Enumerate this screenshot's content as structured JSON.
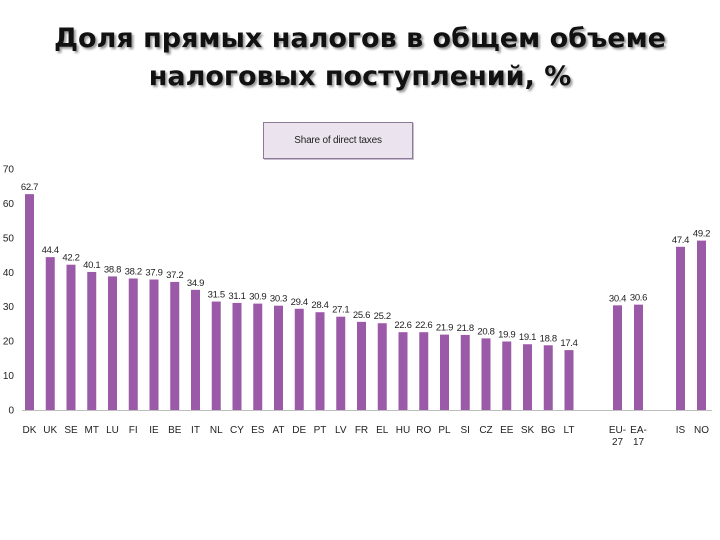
{
  "slide": {
    "title_line1": "Доля прямых налогов в общем объеме",
    "title_line2": "налоговых поступлений, %"
  },
  "chart_data": {
    "type": "bar",
    "legend": "Share of direct taxes",
    "bar_color": "#9b5aa8",
    "ylim": [
      0,
      70
    ],
    "yticks": [
      0,
      10,
      20,
      30,
      40,
      50,
      60,
      70
    ],
    "categories": [
      "DK",
      "UK",
      "SE",
      "MT",
      "LU",
      "FI",
      "IE",
      "BE",
      "IT",
      "NL",
      "CY",
      "ES",
      "AT",
      "DE",
      "PT",
      "LV",
      "FR",
      "EL",
      "HU",
      "RO",
      "PL",
      "SI",
      "CZ",
      "EE",
      "SK",
      "BG",
      "LT",
      "EU-27",
      "EA-17",
      "IS",
      "NO"
    ],
    "values": [
      62.7,
      44.4,
      42.2,
      40.1,
      38.8,
      38.2,
      37.9,
      37.2,
      34.9,
      31.5,
      31.1,
      30.9,
      30.3,
      29.4,
      28.4,
      27.1,
      25.6,
      25.2,
      22.6,
      22.6,
      21.9,
      21.8,
      20.8,
      19.9,
      19.1,
      18.8,
      17.4,
      30.4,
      30.6,
      47.4,
      49.2
    ],
    "value_labels": [
      "62.7",
      "44.4",
      "42.2",
      "40.1",
      "38.8",
      "38.2",
      "37.9",
      "37.2",
      "34.9",
      "31.5",
      "31.1",
      "30.9",
      "30.3",
      "29.4",
      "28.4",
      "27.1",
      "25.6",
      "25.2",
      "22.6",
      "22.6",
      "21.9",
      "21.8",
      "20.8",
      "19.9",
      "19.1",
      "18.8",
      "17.4",
      "30.4",
      "30.6",
      "47.4",
      "49.2"
    ]
  }
}
